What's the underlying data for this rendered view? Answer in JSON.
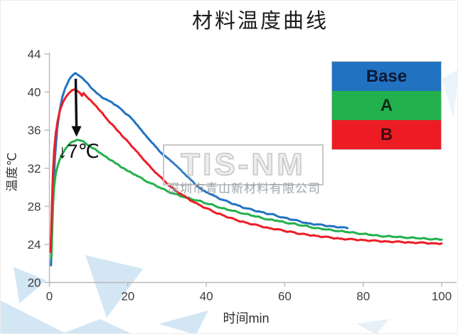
{
  "title": "材料温度曲线",
  "watermark": {
    "logo": "TIS-NM",
    "company": "深圳市青山新材料有限公司"
  },
  "legend": {
    "label_colors": [
      "#0d1733",
      "#0e2b16",
      "#400b10"
    ]
  },
  "chart_data": {
    "type": "line",
    "title": "材料温度曲线",
    "xlabel": "时间min",
    "ylabel": "温度℃",
    "xlim": [
      0,
      100
    ],
    "ylim": [
      20,
      44
    ],
    "x_ticks": [
      0,
      20,
      40,
      60,
      80,
      100
    ],
    "y_ticks": [
      20,
      24,
      28,
      32,
      36,
      40,
      44
    ],
    "grid": false,
    "legend_position": "upper right",
    "annotation": {
      "text": "↓7℃",
      "arrow_from": [
        6.7,
        41.4
      ],
      "arrow_to": [
        6.9,
        35.3
      ]
    },
    "series": [
      {
        "name": "Base",
        "color": "#2173c2",
        "points": [
          [
            0.4,
            21.8
          ],
          [
            0.5,
            23.0
          ],
          [
            0.7,
            26.0
          ],
          [
            1.0,
            29.5
          ],
          [
            1.4,
            33.0
          ],
          [
            2.0,
            36.2
          ],
          [
            2.6,
            38.0
          ],
          [
            3.3,
            39.5
          ],
          [
            4.0,
            40.4
          ],
          [
            5.0,
            41.3
          ],
          [
            6.0,
            41.8
          ],
          [
            6.6,
            42.0
          ],
          [
            7.3,
            41.8
          ],
          [
            8.0,
            41.6
          ],
          [
            9.0,
            41.2
          ],
          [
            10.0,
            40.8
          ],
          [
            11.0,
            40.3
          ],
          [
            12.0,
            39.9
          ],
          [
            13.0,
            39.6
          ],
          [
            14.0,
            39.3
          ],
          [
            15.0,
            39.1
          ],
          [
            16.0,
            38.9
          ],
          [
            17.0,
            38.6
          ],
          [
            18.0,
            38.3
          ],
          [
            19.0,
            37.9
          ],
          [
            20.0,
            37.6
          ],
          [
            21.0,
            37.2
          ],
          [
            22.5,
            36.5
          ],
          [
            24.0,
            35.7
          ],
          [
            25.5,
            35.0
          ],
          [
            27.0,
            34.3
          ],
          [
            28.5,
            33.6
          ],
          [
            30.0,
            33.1
          ],
          [
            31.5,
            32.6
          ],
          [
            33.0,
            32.0
          ],
          [
            34.5,
            31.4
          ],
          [
            36.0,
            30.8
          ],
          [
            37.5,
            30.2
          ],
          [
            39.0,
            29.7
          ],
          [
            40.5,
            29.4
          ],
          [
            42.0,
            29.1
          ],
          [
            44.0,
            28.7
          ],
          [
            46.0,
            28.4
          ],
          [
            48.0,
            28.1
          ],
          [
            50.0,
            27.8
          ],
          [
            52.0,
            27.6
          ],
          [
            54.0,
            27.4
          ],
          [
            56.0,
            27.2
          ],
          [
            57.5,
            27.1
          ],
          [
            58.5,
            26.9
          ],
          [
            60.0,
            26.8
          ],
          [
            62.0,
            26.6
          ],
          [
            64.0,
            26.4
          ],
          [
            66.0,
            26.2
          ],
          [
            68.0,
            26.1
          ],
          [
            70.0,
            26.0
          ],
          [
            72.0,
            25.9
          ],
          [
            74.0,
            25.8
          ],
          [
            76.0,
            25.7
          ]
        ]
      },
      {
        "name": "A",
        "color": "#22b14c",
        "points": [
          [
            0.5,
            22.6
          ],
          [
            0.7,
            25.5
          ],
          [
            0.9,
            28.0
          ],
          [
            1.2,
            30.0
          ],
          [
            1.6,
            31.4
          ],
          [
            2.2,
            32.4
          ],
          [
            3.0,
            33.3
          ],
          [
            4.0,
            34.0
          ],
          [
            5.0,
            34.5
          ],
          [
            6.0,
            34.8
          ],
          [
            7.0,
            35.0
          ],
          [
            8.0,
            34.9
          ],
          [
            9.0,
            34.7
          ],
          [
            10.0,
            34.4
          ],
          [
            11.0,
            34.1
          ],
          [
            12.0,
            33.9
          ],
          [
            13.0,
            33.6
          ],
          [
            14.0,
            33.3
          ],
          [
            15.0,
            33.0
          ],
          [
            16.0,
            32.8
          ],
          [
            17.0,
            32.5
          ],
          [
            18.0,
            32.2
          ],
          [
            19.0,
            32.0
          ],
          [
            20.0,
            31.7
          ],
          [
            22.0,
            31.3
          ],
          [
            24.0,
            30.8
          ],
          [
            26.0,
            30.4
          ],
          [
            28.0,
            30.0
          ],
          [
            30.0,
            29.6
          ],
          [
            32.0,
            29.3
          ],
          [
            34.0,
            29.0
          ],
          [
            36.0,
            28.8
          ],
          [
            38.0,
            28.6
          ],
          [
            40.0,
            28.3
          ],
          [
            42.0,
            28.1
          ],
          [
            44.0,
            27.8
          ],
          [
            46.0,
            27.6
          ],
          [
            48.0,
            27.4
          ],
          [
            50.0,
            27.2
          ],
          [
            52.0,
            27.0
          ],
          [
            54.0,
            26.8
          ],
          [
            56.0,
            26.6
          ],
          [
            58.0,
            26.5
          ],
          [
            60.0,
            26.3
          ],
          [
            62.0,
            26.2
          ],
          [
            64.0,
            26.0
          ],
          [
            66.0,
            25.9
          ],
          [
            68.0,
            25.7
          ],
          [
            70.0,
            25.6
          ],
          [
            72.0,
            25.5
          ],
          [
            74.0,
            25.4
          ],
          [
            76.0,
            25.3
          ],
          [
            78.0,
            25.2
          ],
          [
            80.0,
            25.1
          ],
          [
            82.0,
            25.0
          ],
          [
            84.0,
            24.9
          ],
          [
            86.0,
            24.85
          ],
          [
            88.0,
            24.8
          ],
          [
            90.0,
            24.75
          ],
          [
            92.0,
            24.7
          ],
          [
            94.0,
            24.65
          ],
          [
            96.0,
            24.6
          ],
          [
            98.0,
            24.55
          ],
          [
            100.0,
            24.5
          ]
        ]
      },
      {
        "name": "B",
        "color": "#ed1c24",
        "points": [
          [
            0.3,
            23.2
          ],
          [
            0.5,
            26.0
          ],
          [
            0.7,
            29.0
          ],
          [
            0.9,
            31.5
          ],
          [
            1.2,
            33.8
          ],
          [
            1.6,
            35.6
          ],
          [
            2.1,
            37.0
          ],
          [
            2.7,
            38.1
          ],
          [
            3.4,
            38.9
          ],
          [
            4.2,
            39.5
          ],
          [
            5.0,
            39.9
          ],
          [
            5.8,
            40.2
          ],
          [
            6.5,
            40.3
          ],
          [
            7.2,
            40.1
          ],
          [
            7.8,
            39.9
          ],
          [
            8.3,
            39.6
          ],
          [
            8.7,
            39.9
          ],
          [
            9.3,
            39.6
          ],
          [
            10.0,
            39.3
          ],
          [
            11.0,
            38.9
          ],
          [
            12.0,
            38.5
          ],
          [
            13.0,
            38.0
          ],
          [
            14.0,
            37.5
          ],
          [
            15.0,
            37.0
          ],
          [
            16.0,
            36.6
          ],
          [
            17.0,
            36.1
          ],
          [
            18.0,
            35.7
          ],
          [
            19.0,
            35.2
          ],
          [
            20.0,
            34.8
          ],
          [
            21.5,
            34.1
          ],
          [
            23.0,
            33.4
          ],
          [
            24.5,
            32.7
          ],
          [
            26.0,
            32.0
          ],
          [
            27.5,
            31.4
          ],
          [
            29.0,
            30.8
          ],
          [
            30.5,
            30.2
          ],
          [
            32.0,
            29.7
          ],
          [
            33.5,
            29.3
          ],
          [
            35.0,
            28.9
          ],
          [
            36.5,
            28.5
          ],
          [
            38.0,
            28.2
          ],
          [
            40.0,
            27.8
          ],
          [
            42.0,
            27.4
          ],
          [
            44.0,
            27.1
          ],
          [
            46.0,
            26.8
          ],
          [
            48.0,
            26.5
          ],
          [
            50.0,
            26.3
          ],
          [
            52.0,
            26.1
          ],
          [
            54.0,
            25.9
          ],
          [
            56.0,
            25.7
          ],
          [
            58.0,
            25.6
          ],
          [
            60.0,
            25.4
          ],
          [
            62.0,
            25.3
          ],
          [
            64.0,
            25.1
          ],
          [
            66.0,
            25.0
          ],
          [
            68.0,
            24.9
          ],
          [
            70.0,
            24.8
          ],
          [
            72.0,
            24.7
          ],
          [
            74.0,
            24.6
          ],
          [
            76.0,
            24.55
          ],
          [
            78.0,
            24.5
          ],
          [
            80.0,
            24.45
          ],
          [
            82.0,
            24.4
          ],
          [
            84.0,
            24.35
          ],
          [
            86.0,
            24.3
          ],
          [
            88.0,
            24.28
          ],
          [
            90.0,
            24.25
          ],
          [
            92.0,
            24.2
          ],
          [
            94.0,
            24.18
          ],
          [
            96.0,
            24.15
          ],
          [
            98.0,
            24.1
          ],
          [
            100.0,
            24.1
          ]
        ]
      }
    ]
  }
}
